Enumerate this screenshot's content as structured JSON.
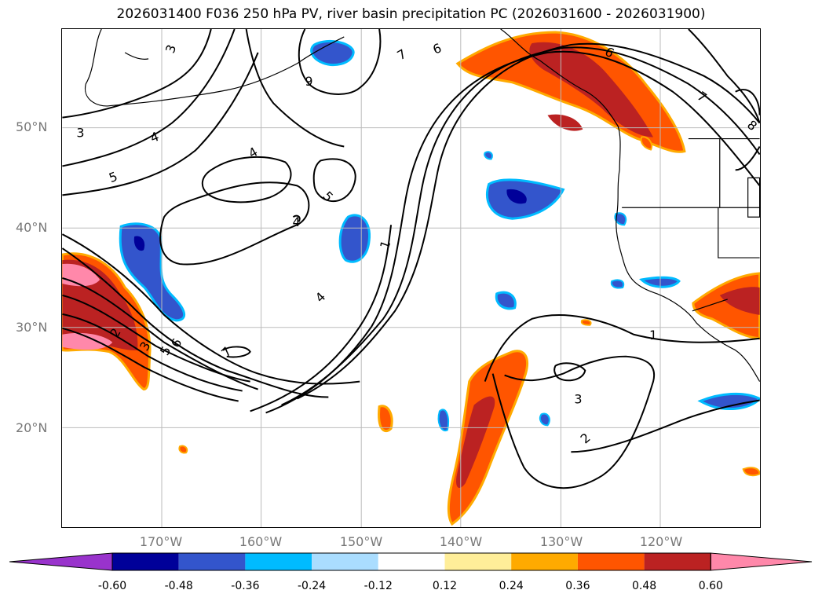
{
  "title": "2026031400 F036 250 hPa PV, river basin precipitation PC (2026031600 - 2026031900)",
  "lat_labels": [
    "50°N",
    "40°N",
    "30°N",
    "20°N"
  ],
  "lon_labels": [
    "170°W",
    "160°W",
    "150°W",
    "140°W",
    "130°W",
    "120°W"
  ],
  "colorbar": {
    "ticks": [
      "-0.60",
      "-0.48",
      "-0.36",
      "-0.24",
      "-0.12",
      "0.12",
      "0.24",
      "0.36",
      "0.48",
      "0.60"
    ],
    "colors": [
      "#9933cc",
      "#000099",
      "#3355cc",
      "#00bbff",
      "#aaddff",
      "#ffffff",
      "#ffee99",
      "#ffaa00",
      "#ff5500",
      "#bb2222",
      "#ff88aa"
    ]
  },
  "contour_labels": [
    "3",
    "3",
    "4",
    "5",
    "4",
    "5",
    "4",
    "1",
    "6",
    "7",
    "9",
    "6",
    "7",
    "8",
    "4",
    "2",
    "3",
    "5",
    "6",
    "7",
    "1",
    "3",
    "2"
  ],
  "colors": {
    "contour": "#000000",
    "coast": "#000000",
    "grid": "#bbbbbb"
  }
}
